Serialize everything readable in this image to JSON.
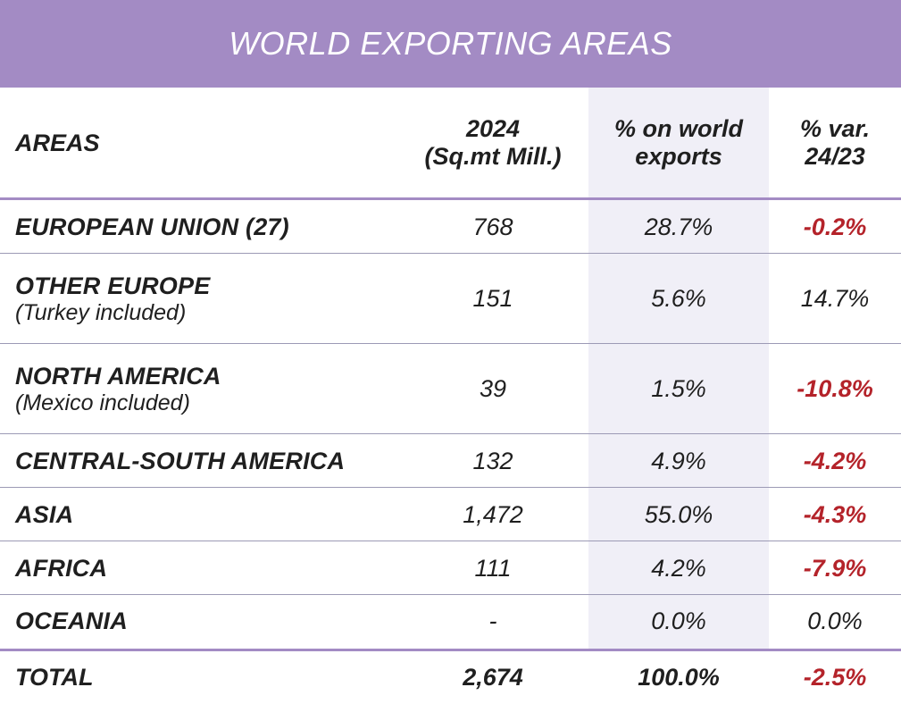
{
  "title": "WORLD EXPORTING AREAS",
  "headers": {
    "areas": "AREAS",
    "year": "2024",
    "year_unit": "(Sq.mt Mill.)",
    "share_line1": "% on world",
    "share_line2": "exports",
    "var_line1": "% var.",
    "var_line2": "24/23"
  },
  "rows": [
    {
      "area": "EUROPEAN UNION (27)",
      "note": "",
      "value": "768",
      "share": "28.7%",
      "var": "-0.2%",
      "negative": true
    },
    {
      "area": "OTHER EUROPE",
      "note": "(Turkey included)",
      "value": "151",
      "share": "5.6%",
      "var": "14.7%",
      "negative": false
    },
    {
      "area": "NORTH AMERICA",
      "note": "(Mexico included)",
      "value": "39",
      "share": "1.5%",
      "var": "-10.8%",
      "negative": true
    },
    {
      "area": "CENTRAL-SOUTH AMERICA",
      "note": "",
      "value": "132",
      "share": "4.9%",
      "var": "-4.2%",
      "negative": true
    },
    {
      "area": "ASIA",
      "note": "",
      "value": "1,472",
      "share": "55.0%",
      "var": "-4.3%",
      "negative": true
    },
    {
      "area": "AFRICA",
      "note": "",
      "value": "111",
      "share": "4.2%",
      "var": "-7.9%",
      "negative": true
    },
    {
      "area": "OCEANIA",
      "note": "",
      "value": "-",
      "share": "0.0%",
      "var": "0.0%",
      "negative": false
    }
  ],
  "total": {
    "area": "TOTAL",
    "value": "2,674",
    "share": "100.0%",
    "var": "-2.5%",
    "negative": true
  },
  "colors": {
    "header_bar": "#a38bc4",
    "negative": "#b4232a",
    "shaded_column": "#f0eff7"
  }
}
